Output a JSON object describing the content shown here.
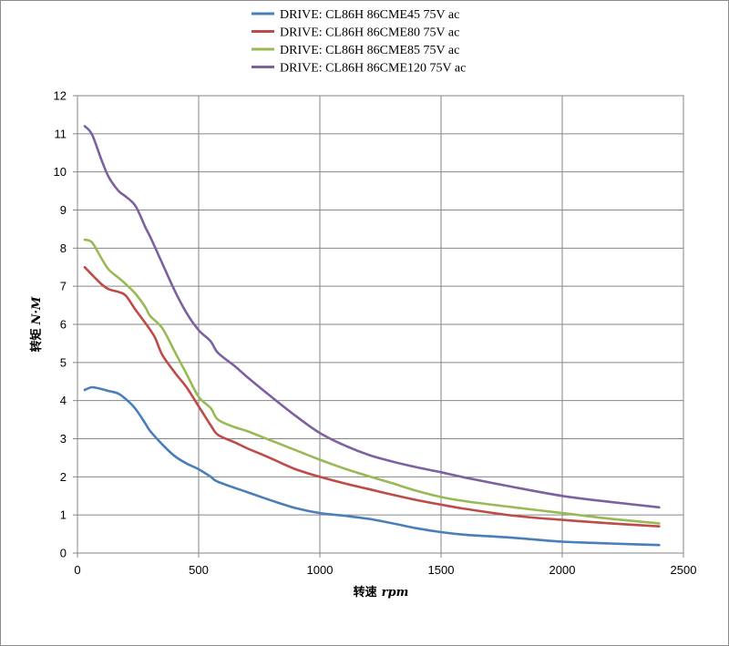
{
  "chart_data": {
    "type": "line",
    "xlabel_cn": "转速",
    "xlabel_unit": "rpm",
    "ylabel_cn": "转矩",
    "ylabel_unit": "N·M",
    "xlim": [
      0,
      2500
    ],
    "ylim": [
      0,
      12
    ],
    "xticks": [
      0,
      500,
      1000,
      1500,
      2000,
      2500
    ],
    "yticks": [
      0,
      1,
      2,
      3,
      4,
      5,
      6,
      7,
      8,
      9,
      10,
      11,
      12
    ],
    "grid": true,
    "legend_position": "top",
    "series": [
      {
        "name": "DRIVE: CL86H 86CME45 75V ac",
        "color": "#4a7ebb",
        "points": [
          [
            30,
            4.28
          ],
          [
            60,
            4.35
          ],
          [
            100,
            4.3
          ],
          [
            130,
            4.25
          ],
          [
            170,
            4.18
          ],
          [
            210,
            3.98
          ],
          [
            240,
            3.78
          ],
          [
            280,
            3.4
          ],
          [
            300,
            3.2
          ],
          [
            350,
            2.85
          ],
          [
            400,
            2.55
          ],
          [
            450,
            2.35
          ],
          [
            500,
            2.2
          ],
          [
            550,
            2.0
          ],
          [
            580,
            1.87
          ],
          [
            700,
            1.6
          ],
          [
            800,
            1.38
          ],
          [
            900,
            1.18
          ],
          [
            1000,
            1.05
          ],
          [
            1100,
            0.98
          ],
          [
            1200,
            0.9
          ],
          [
            1300,
            0.78
          ],
          [
            1400,
            0.65
          ],
          [
            1500,
            0.55
          ],
          [
            1600,
            0.48
          ],
          [
            1800,
            0.4
          ],
          [
            2000,
            0.3
          ],
          [
            2200,
            0.25
          ],
          [
            2400,
            0.21
          ]
        ]
      },
      {
        "name": "DRIVE: CL86H 86CME80 75V ac",
        "color": "#be4b48",
        "points": [
          [
            30,
            7.5
          ],
          [
            60,
            7.3
          ],
          [
            100,
            7.05
          ],
          [
            130,
            6.92
          ],
          [
            170,
            6.85
          ],
          [
            200,
            6.75
          ],
          [
            240,
            6.38
          ],
          [
            290,
            5.95
          ],
          [
            320,
            5.65
          ],
          [
            350,
            5.2
          ],
          [
            400,
            4.75
          ],
          [
            450,
            4.35
          ],
          [
            500,
            3.85
          ],
          [
            550,
            3.35
          ],
          [
            580,
            3.1
          ],
          [
            650,
            2.9
          ],
          [
            700,
            2.75
          ],
          [
            800,
            2.48
          ],
          [
            900,
            2.2
          ],
          [
            1000,
            2.0
          ],
          [
            1100,
            1.83
          ],
          [
            1200,
            1.68
          ],
          [
            1300,
            1.53
          ],
          [
            1400,
            1.39
          ],
          [
            1500,
            1.27
          ],
          [
            1600,
            1.16
          ],
          [
            1800,
            0.98
          ],
          [
            2000,
            0.87
          ],
          [
            2200,
            0.78
          ],
          [
            2400,
            0.7
          ]
        ]
      },
      {
        "name": "DRIVE: CL86H 86CME85 75V ac",
        "color": "#98b954",
        "points": [
          [
            30,
            8.22
          ],
          [
            60,
            8.15
          ],
          [
            100,
            7.72
          ],
          [
            130,
            7.43
          ],
          [
            170,
            7.22
          ],
          [
            200,
            7.05
          ],
          [
            240,
            6.8
          ],
          [
            280,
            6.45
          ],
          [
            300,
            6.22
          ],
          [
            350,
            5.9
          ],
          [
            400,
            5.3
          ],
          [
            450,
            4.7
          ],
          [
            500,
            4.1
          ],
          [
            550,
            3.8
          ],
          [
            580,
            3.5
          ],
          [
            650,
            3.3
          ],
          [
            700,
            3.2
          ],
          [
            800,
            2.95
          ],
          [
            900,
            2.7
          ],
          [
            1000,
            2.45
          ],
          [
            1100,
            2.22
          ],
          [
            1200,
            2.02
          ],
          [
            1300,
            1.83
          ],
          [
            1400,
            1.63
          ],
          [
            1500,
            1.47
          ],
          [
            1600,
            1.36
          ],
          [
            1800,
            1.2
          ],
          [
            2000,
            1.05
          ],
          [
            2200,
            0.9
          ],
          [
            2400,
            0.78
          ]
        ]
      },
      {
        "name": "DRIVE: CL86H 86CME120 75V ac",
        "color": "#7d60a0",
        "points": [
          [
            30,
            11.2
          ],
          [
            60,
            10.98
          ],
          [
            100,
            10.3
          ],
          [
            130,
            9.85
          ],
          [
            170,
            9.5
          ],
          [
            200,
            9.35
          ],
          [
            240,
            9.1
          ],
          [
            280,
            8.55
          ],
          [
            300,
            8.3
          ],
          [
            350,
            7.6
          ],
          [
            400,
            6.9
          ],
          [
            450,
            6.3
          ],
          [
            500,
            5.85
          ],
          [
            550,
            5.55
          ],
          [
            580,
            5.25
          ],
          [
            650,
            4.9
          ],
          [
            700,
            4.62
          ],
          [
            800,
            4.1
          ],
          [
            900,
            3.6
          ],
          [
            1000,
            3.15
          ],
          [
            1100,
            2.83
          ],
          [
            1200,
            2.58
          ],
          [
            1300,
            2.4
          ],
          [
            1400,
            2.25
          ],
          [
            1500,
            2.12
          ],
          [
            1600,
            1.98
          ],
          [
            1800,
            1.73
          ],
          [
            2000,
            1.5
          ],
          [
            2200,
            1.34
          ],
          [
            2400,
            1.2
          ]
        ]
      }
    ]
  }
}
